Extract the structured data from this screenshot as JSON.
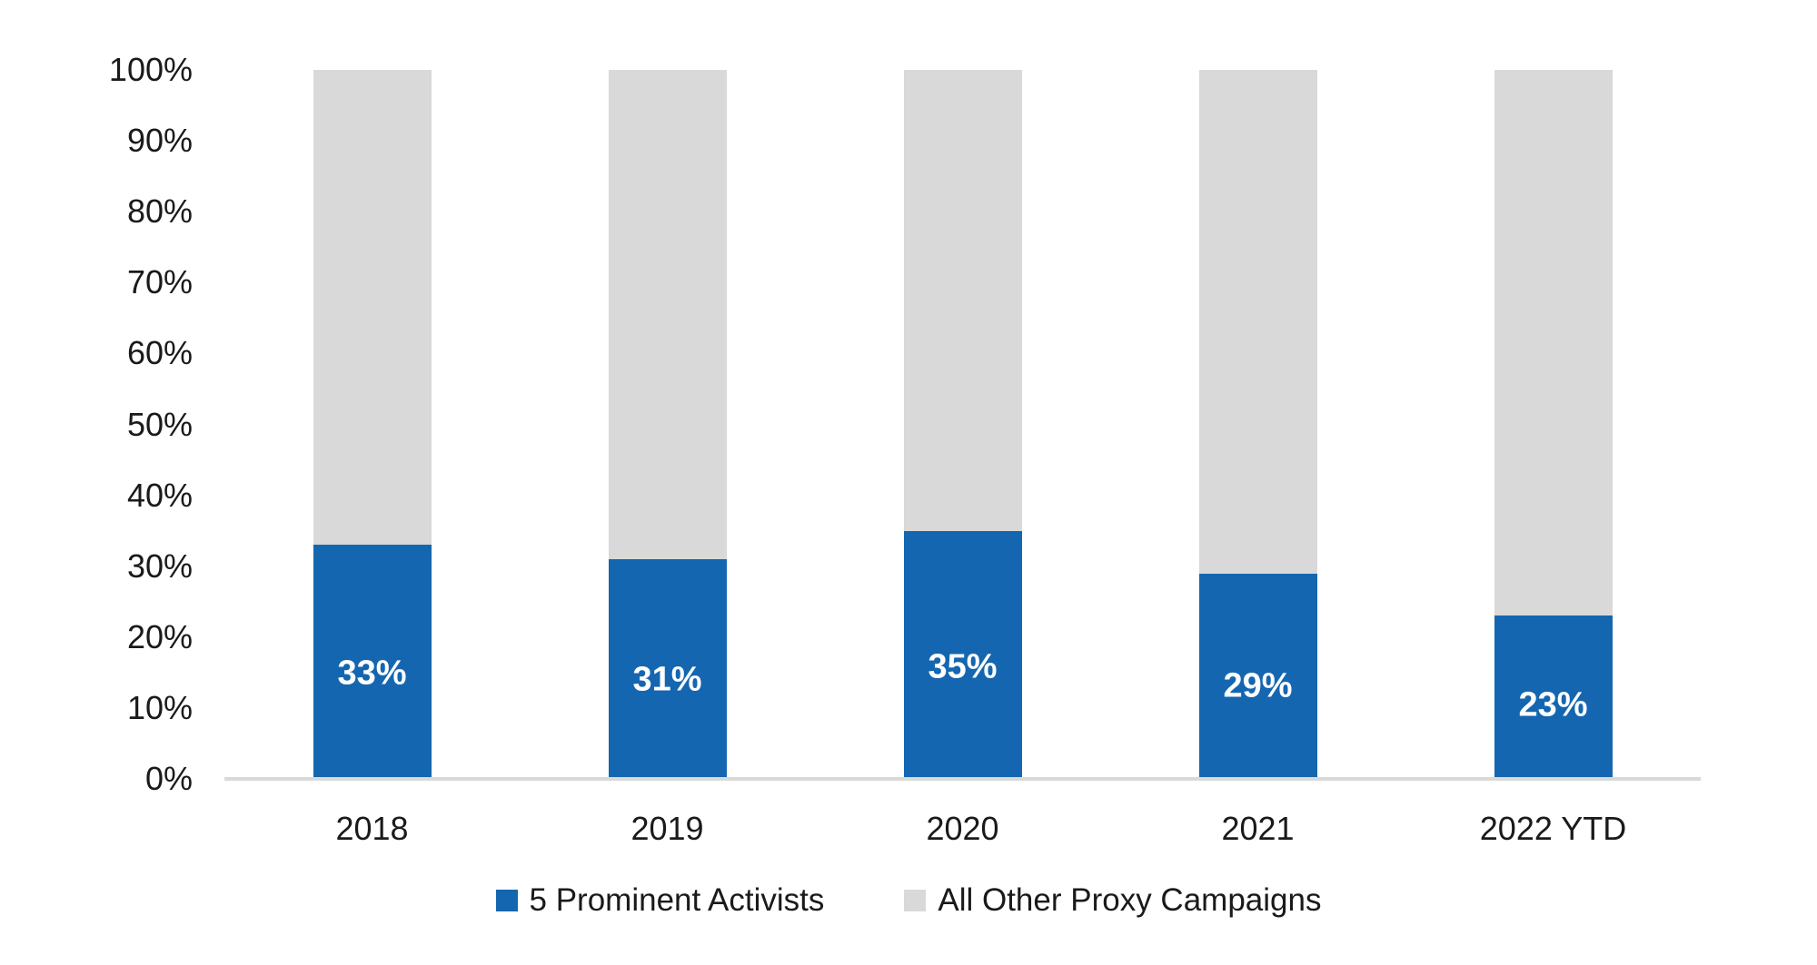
{
  "chart_data": {
    "type": "bar",
    "variant": "stacked-100-percent-vertical",
    "title": "",
    "xlabel": "",
    "ylabel": "",
    "categories": [
      "2018",
      "2019",
      "2020",
      "2021",
      "2022 YTD"
    ],
    "series": [
      {
        "name": "5 Prominent Activists",
        "color": "#1566b0",
        "values": [
          33,
          31,
          35,
          29,
          23
        ],
        "data_labels": [
          "33%",
          "31%",
          "35%",
          "29%",
          "23%"
        ],
        "data_label_color": "#ffffff"
      },
      {
        "name": "All Other Proxy Campaigns",
        "color": "#d9d9d9",
        "values": [
          67,
          69,
          65,
          71,
          77
        ],
        "data_labels": [
          "",
          "",
          "",
          "",
          ""
        ],
        "data_label_color": ""
      }
    ],
    "y_axis": {
      "min": 0,
      "max": 100,
      "step": 10,
      "tick_labels": [
        "100%",
        "90%",
        "80%",
        "70%",
        "60%",
        "50%",
        "40%",
        "30%",
        "20%",
        "10%",
        "0%"
      ]
    },
    "grid": false,
    "axis_line_color": "#d9d9d9",
    "tick_label_color": "#1a1a1a",
    "background_color": "#ffffff",
    "legend_position": "bottom-center"
  }
}
